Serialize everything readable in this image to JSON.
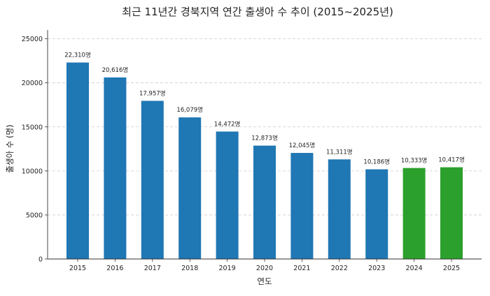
{
  "chart_data": {
    "type": "bar",
    "title": "최근 11년간 경북지역 연간 출생아 수 추이 (2015~2025년)",
    "xlabel": "연도",
    "ylabel": "출생아 수 (명)",
    "categories": [
      "2015",
      "2016",
      "2017",
      "2018",
      "2019",
      "2020",
      "2021",
      "2022",
      "2023",
      "2024",
      "2025"
    ],
    "values": [
      22310,
      20616,
      17957,
      16079,
      14472,
      12873,
      12045,
      11311,
      10186,
      10333,
      10417
    ],
    "data_labels": [
      "22,310명",
      "20,616명",
      "17,957명",
      "16,079명",
      "14,472명",
      "12,873명",
      "12,045명",
      "11,311명",
      "10,186명",
      "10,333명",
      "10,417명"
    ],
    "bar_colors": [
      "#1f77b4",
      "#1f77b4",
      "#1f77b4",
      "#1f77b4",
      "#1f77b4",
      "#1f77b4",
      "#1f77b4",
      "#1f77b4",
      "#1f77b4",
      "#2ca02c",
      "#2ca02c"
    ],
    "ylim": [
      0,
      26000
    ],
    "yticks": [
      0,
      5000,
      10000,
      15000,
      20000,
      25000
    ],
    "grid": true,
    "legend": null
  }
}
